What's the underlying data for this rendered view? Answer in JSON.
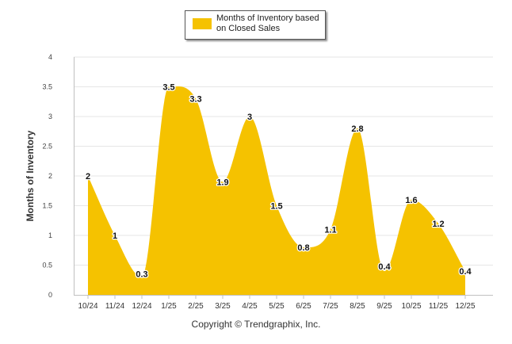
{
  "chart_data": {
    "type": "area",
    "title": "",
    "xlabel": "",
    "ylabel": "Months of Inventory",
    "ylim": [
      0,
      4
    ],
    "yticks": [
      "0",
      "0.5",
      "1",
      "1.5",
      "2",
      "2.5",
      "3",
      "3.5",
      "4"
    ],
    "grid": true,
    "legend_position": "top-center",
    "categories": [
      "10/24",
      "11/24",
      "12/24",
      "1/25",
      "2/25",
      "3/25",
      "4/25",
      "5/25",
      "6/25",
      "7/25",
      "8/25",
      "9/25",
      "10/25",
      "11/25",
      "12/25"
    ],
    "series": [
      {
        "name": "Months of Inventory based on Closed Sales",
        "values": [
          2,
          1,
          0.3,
          3.5,
          3.3,
          1.9,
          3,
          1.5,
          0.8,
          1.1,
          2.8,
          0.4,
          1.6,
          1.2,
          0.4
        ],
        "data_labels": [
          "2",
          "1",
          "0.3",
          "3.5",
          "3.3",
          "1.9",
          "3",
          "1.5",
          "0.8",
          "1.1",
          "2.8",
          "0.4",
          "1.6",
          "1.2",
          "0.4"
        ],
        "color": "#f5c200"
      }
    ]
  },
  "legend": {
    "label": "Months of Inventory based on Closed Sales"
  },
  "footer": {
    "copyright": "Copyright © Trendgraphix, Inc."
  }
}
